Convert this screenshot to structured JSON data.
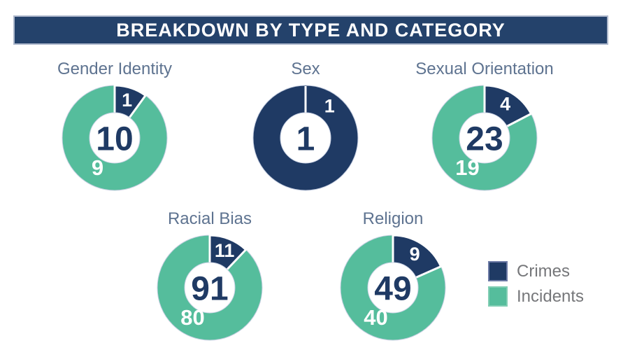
{
  "header": {
    "title": "BREAKDOWN BY TYPE AND CATEGORY",
    "background": "#24426b",
    "border": "#aeb8cc"
  },
  "legend": {
    "items": [
      {
        "label": "Crimes",
        "color": "#1f3a64"
      },
      {
        "label": "Incidents",
        "color": "#55bd9c"
      }
    ]
  },
  "chart_data": {
    "type": "pie",
    "subtype": "donut",
    "title": "BREAKDOWN BY TYPE AND CATEGORY",
    "legend_entries": [
      "Crimes",
      "Incidents"
    ],
    "legend_position": "right",
    "series_colors": {
      "crimes": "#1f3a64",
      "incidents": "#55bd9c"
    },
    "charts": [
      {
        "title": "Gender Identity",
        "total": 10,
        "crimes": 1,
        "incidents": 9
      },
      {
        "title": "Sex",
        "total": 1,
        "crimes": 1,
        "incidents": 0
      },
      {
        "title": "Sexual Orientation",
        "total": 23,
        "crimes": 4,
        "incidents": 19
      },
      {
        "title": "Racial Bias",
        "total": 91,
        "crimes": 11,
        "incidents": 80
      },
      {
        "title": "Religion",
        "total": 49,
        "crimes": 9,
        "incidents": 40
      }
    ]
  }
}
